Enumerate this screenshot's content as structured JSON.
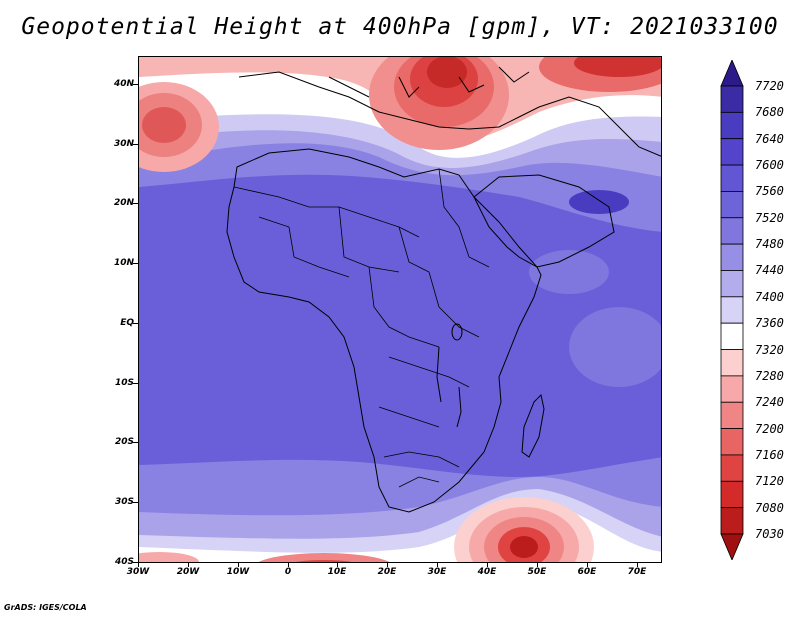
{
  "title": "Geopotential Height at 400hPa [gpm], VT: 2021033100",
  "credit": "GrADS: IGES/COLA",
  "lat_labels": [
    "40N",
    "30N",
    "20N",
    "10N",
    "EQ",
    "10S",
    "20S",
    "30S",
    "40S"
  ],
  "lon_labels": [
    "30W",
    "20W",
    "10W",
    "0",
    "10E",
    "20E",
    "30E",
    "40E",
    "50E",
    "60E",
    "70E"
  ],
  "colorbar": {
    "labels": [
      "7720",
      "7680",
      "7640",
      "7600",
      "7560",
      "7520",
      "7480",
      "7440",
      "7400",
      "7360",
      "7320",
      "7280",
      "7240",
      "7200",
      "7160",
      "7120",
      "7080",
      "7030"
    ],
    "colors": [
      "#2c1a8a",
      "#3b2ca6",
      "#4a3cc0",
      "#5444cc",
      "#6256d4",
      "#6e64da",
      "#8076de",
      "#978ee5",
      "#b4aded",
      "#d7d3f6",
      "#ffffff",
      "#fbd0cf",
      "#f6a9a8",
      "#ef8685",
      "#e86564",
      "#df4443",
      "#d42a29",
      "#bb1c1c",
      "#a11010"
    ]
  },
  "map": {
    "region": "Africa",
    "lon_range": [
      -30,
      75
    ],
    "lat_range": [
      -40,
      45
    ],
    "field": "Geopotential Height at 400hPa",
    "units": "gpm"
  }
}
